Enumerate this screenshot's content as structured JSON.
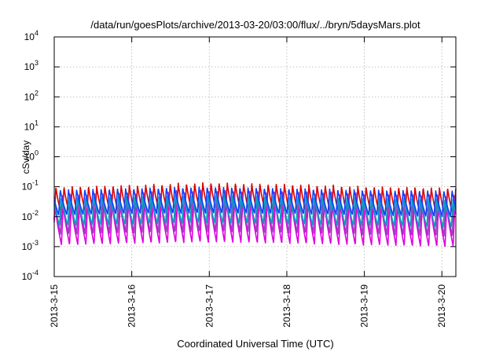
{
  "chart_data": {
    "type": "line",
    "title": "/data/run/goesPlots/archive/2013-03-20/03:00/flux/../bryn/5daysMars.plot",
    "xlabel": "Coordinated Universal Time (UTC)",
    "ylabel": "cSv/day",
    "yscale": "log",
    "ylim_exp": [
      -4,
      4
    ],
    "xlim_days": [
      0,
      5.18
    ],
    "x_ticks": [
      {
        "label": "2013-3-15",
        "day": 0
      },
      {
        "label": "2013-3-16",
        "day": 1
      },
      {
        "label": "2013-3-17",
        "day": 2
      },
      {
        "label": "2013-3-18",
        "day": 3
      },
      {
        "label": "2013-3-19",
        "day": 4
      },
      {
        "label": "2013-3-20",
        "day": 5
      }
    ],
    "y_ticks": [
      -4,
      -3,
      -2,
      -1,
      0,
      1,
      2,
      3,
      4
    ],
    "y_tick_base": "10",
    "grid": true,
    "legend": "none",
    "cycles_per_day": 9.5,
    "series": [
      {
        "color": "#dd0000",
        "log_peak": [
          -1.0,
          -0.93,
          -0.85,
          -0.9,
          -0.98,
          -1.02
        ],
        "log_trough": [
          -2.1,
          -2.05,
          -2.0,
          -2.05,
          -2.1,
          -2.15
        ]
      },
      {
        "color": "#e000e0",
        "log_peak": [
          -1.6,
          -1.5,
          -1.4,
          -1.45,
          -1.55,
          -1.6
        ],
        "log_trough": [
          -2.95,
          -2.9,
          -2.85,
          -2.9,
          -2.95,
          -3.0
        ]
      },
      {
        "color": "#9a3fc0",
        "log_peak": [
          -1.25,
          -1.18,
          -1.1,
          -1.15,
          -1.2,
          -1.25
        ],
        "log_trough": [
          -2.6,
          -2.55,
          -2.5,
          -2.55,
          -2.6,
          -2.65
        ]
      },
      {
        "color": "#00a0c0",
        "log_peak": [
          -1.35,
          -1.3,
          -1.25,
          -1.3,
          -1.35,
          -1.4
        ],
        "log_trough": [
          -2.3,
          -2.25,
          -2.2,
          -2.25,
          -2.3,
          -2.35
        ]
      },
      {
        "color": "#1040ff",
        "log_peak": [
          -1.1,
          -1.05,
          -1.0,
          -1.05,
          -1.1,
          -1.12
        ],
        "log_trough": [
          -1.95,
          -1.9,
          -1.88,
          -1.9,
          -1.95,
          -2.0
        ]
      }
    ]
  }
}
